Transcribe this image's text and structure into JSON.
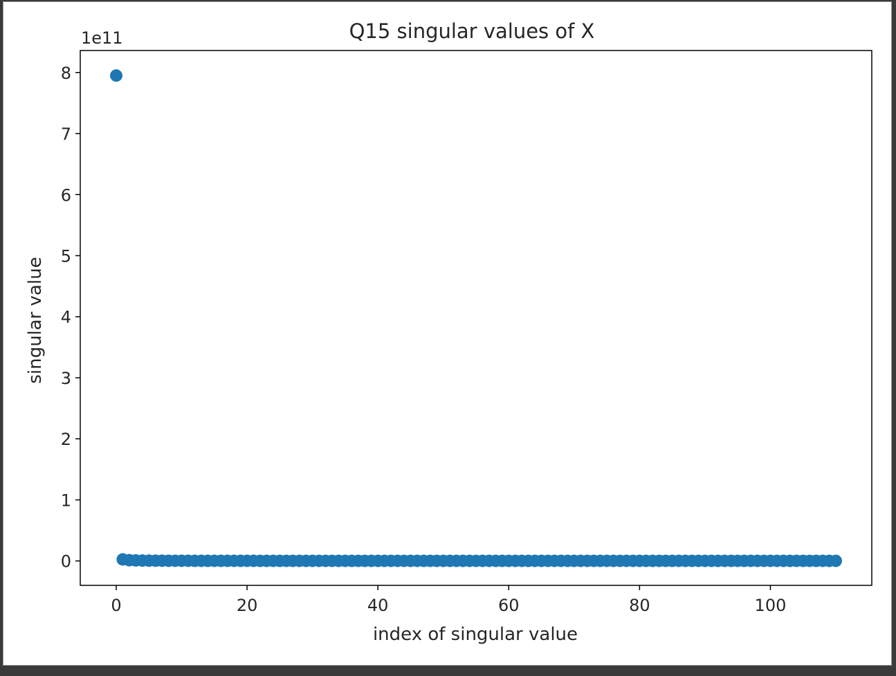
{
  "chart_data": {
    "type": "scatter",
    "title": "Q15 singular values of X",
    "xlabel": "index of singular value",
    "ylabel": "singular value",
    "y_offset_label": "1e11",
    "xlim": [
      -5.5,
      115.5
    ],
    "ylim": [
      -0.4,
      8.36
    ],
    "y_scale_factor": 100000000000.0,
    "xticks": [
      0,
      20,
      40,
      60,
      80,
      100
    ],
    "yticks": [
      0,
      1,
      2,
      3,
      4,
      5,
      6,
      7,
      8
    ],
    "grid": false,
    "marker_color": "#1f77b4",
    "series": [
      {
        "x": [
          0,
          1,
          2,
          3,
          4,
          5,
          6,
          7,
          8,
          9,
          10,
          11,
          12,
          13,
          14,
          15,
          16,
          17,
          18,
          19,
          20,
          21,
          22,
          23,
          24,
          25,
          26,
          27,
          28,
          29,
          30,
          31,
          32,
          33,
          34,
          35,
          36,
          37,
          38,
          39,
          40,
          41,
          42,
          43,
          44,
          45,
          46,
          47,
          48,
          49,
          50,
          51,
          52,
          53,
          54,
          55,
          56,
          57,
          58,
          59,
          60,
          61,
          62,
          63,
          64,
          65,
          66,
          67,
          68,
          69,
          70,
          71,
          72,
          73,
          74,
          75,
          76,
          77,
          78,
          79,
          80,
          81,
          82,
          83,
          84,
          85,
          86,
          87,
          88,
          89,
          90,
          91,
          92,
          93,
          94,
          95,
          96,
          97,
          98,
          99,
          100,
          101,
          102,
          103,
          104,
          105,
          106,
          107,
          108,
          109,
          110
        ],
        "y": [
          7.95,
          0.025,
          0.012,
          0.008,
          0.006,
          0.005,
          0.004,
          0.004,
          0.003,
          0.003,
          0.003,
          0.003,
          0.002,
          0.002,
          0.002,
          0.002,
          0.002,
          0.002,
          0.002,
          0.002,
          0.002,
          0.002,
          0.001,
          0.001,
          0.001,
          0.001,
          0.001,
          0.001,
          0.001,
          0.001,
          0.001,
          0.001,
          0.001,
          0.001,
          0.001,
          0.001,
          0.001,
          0.001,
          0.001,
          0.001,
          0.001,
          0.001,
          0.001,
          0.001,
          0.001,
          0.001,
          0.001,
          0.001,
          0.001,
          0.001,
          0.001,
          0.001,
          0.001,
          0.001,
          0.001,
          0.001,
          0.001,
          0.001,
          0.001,
          0.001,
          0.001,
          0.001,
          0.001,
          0.001,
          0.001,
          0.001,
          0.001,
          0.001,
          0.001,
          0.001,
          0.001,
          0.001,
          0.001,
          0.001,
          0.001,
          0.001,
          0.001,
          0.001,
          0.001,
          0.001,
          0.001,
          0.001,
          0.001,
          0.001,
          0.001,
          0.001,
          0.001,
          0.001,
          0.001,
          0.001,
          0.001,
          0.001,
          0.001,
          0.001,
          0.001,
          0.001,
          0.001,
          0.001,
          0.001,
          0.001,
          0.001,
          0.001,
          0.001,
          0.001,
          0.001,
          0.001,
          0.001,
          0.001,
          0.001,
          0.001,
          0.001
        ]
      }
    ]
  }
}
